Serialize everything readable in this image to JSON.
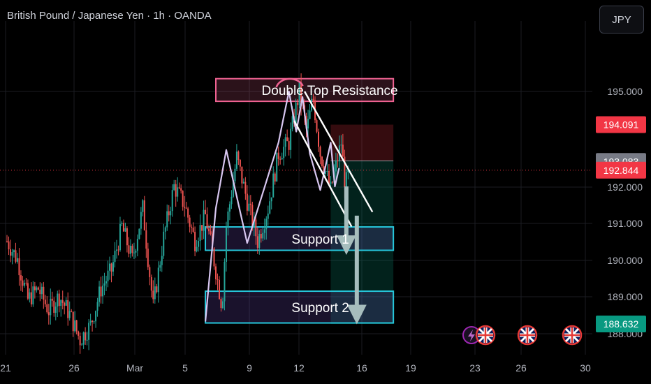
{
  "header": {
    "title": "British Pound / Japanese Yen · 1h · OANDA",
    "currency_button": "JPY"
  },
  "colors": {
    "up": "#26a69a",
    "down": "#ef5350",
    "pattern": "#d7c6f0",
    "resistance": "#f06292",
    "support": "#26c6da",
    "arrow": "#a6bdbd",
    "grid": "#1b1d22"
  },
  "chart_data": {
    "type": "candlestick",
    "symbol": "GBPJPY",
    "timeframe": "1h",
    "y_ticks": [
      "195.000",
      "192.000",
      "191.000",
      "190.000",
      "189.000",
      "188.000"
    ],
    "y_range": [
      187.5,
      195.8
    ],
    "x_ticks": [
      "21",
      "26",
      "Mar",
      "5",
      "9",
      "12",
      "16",
      "19",
      "23",
      "26",
      "30"
    ],
    "x_range": [
      "Feb 20",
      "Mar 30"
    ],
    "price_labels": [
      {
        "text": "194.091",
        "value": 194.091,
        "color": "#f23645"
      },
      {
        "text": "193.083",
        "value": 193.083,
        "color": "#787b86"
      },
      {
        "text": "192.844",
        "value": 192.844,
        "color": "#f23645"
      },
      {
        "text": "188.632",
        "value": 188.632,
        "color": "#089981"
      }
    ],
    "zones": [
      {
        "label": "Double Top Resistance",
        "color": "#f06292",
        "price_top": 195.35,
        "price_bottom": 194.73,
        "from_date": "Mar 11",
        "to_date": "Mar 28"
      },
      {
        "label": "Support 1",
        "color": "#26c6da",
        "price_top": 191.29,
        "price_bottom": 190.65,
        "from_date": "Mar 10",
        "to_date": "Mar 28"
      },
      {
        "label": "Support 2",
        "color": "#26c6da",
        "price_top": 189.53,
        "price_bottom": 188.66,
        "from_date": "Mar 10",
        "to_date": "Mar 28"
      }
    ],
    "trade_box": {
      "entry": 193.1,
      "stop": 194.091,
      "target": 188.632,
      "from_date": "Mar 22",
      "to_date": "Mar 28"
    },
    "current_price": 192.844,
    "pattern_path": [
      {
        "date": "Mar 10",
        "price": 188.7
      },
      {
        "date": "Mar 11",
        "price": 191.8
      },
      {
        "date": "Mar 12",
        "price": 193.4
      },
      {
        "date": "Mar 14",
        "price": 190.85
      },
      {
        "date": "Mar 17",
        "price": 193.6
      },
      {
        "date": "Mar 18",
        "price": 195.0
      },
      {
        "date": "Mar 18.7",
        "price": 193.9
      },
      {
        "date": "Mar 19.3",
        "price": 194.85
      },
      {
        "date": "Mar 20",
        "price": 193.3
      },
      {
        "date": "Mar 21",
        "price": 192.3
      },
      {
        "date": "Mar 22",
        "price": 193.6
      },
      {
        "date": "Mar 22.4",
        "price": 192.4
      },
      {
        "date": "Mar 22.8",
        "price": 192.9
      }
    ],
    "channel_lines": [
      {
        "from": {
          "date": "Mar 19.5",
          "price": 195.0
        },
        "to": {
          "date": "Mar 26",
          "price": 191.7
        }
      },
      {
        "from": {
          "date": "Mar 18.5",
          "price": 194.2
        },
        "to": {
          "date": "Mar 24",
          "price": 191.3
        }
      }
    ],
    "down_arrows": [
      {
        "date": "Mar 23.5",
        "from_price": 192.4,
        "to_price": 190.6
      },
      {
        "date": "Mar 24.5",
        "from_price": 191.6,
        "to_price": 188.7
      }
    ],
    "event_markers": [
      "lightning",
      "uk-flag",
      "uk-flag",
      "uk-flag"
    ]
  }
}
